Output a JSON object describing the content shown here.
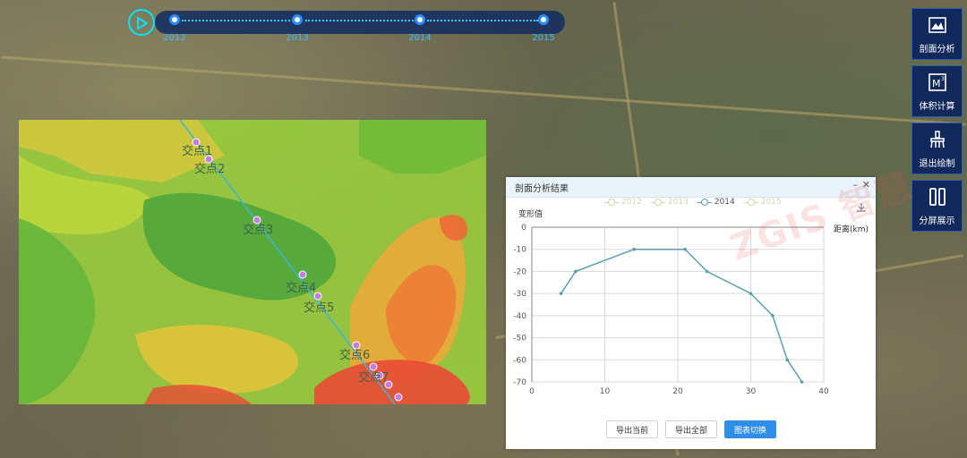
{
  "timeline": {
    "years": [
      "2012",
      "2013",
      "2014",
      "2015"
    ]
  },
  "map": {
    "intersections": [
      "交点1",
      "交点2",
      "交点3",
      "交点4",
      "交点5",
      "交点6",
      "交点7"
    ]
  },
  "tools": [
    {
      "label": "剖面分析",
      "icon": "profile-analysis-icon"
    },
    {
      "label": "体积计算",
      "icon": "volume-calculation-icon"
    },
    {
      "label": "退出绘制",
      "icon": "exit-draw-icon"
    },
    {
      "label": "分屏展示",
      "icon": "split-screen-icon"
    }
  ],
  "panel": {
    "title": "剖面分析结果",
    "minimize": "–",
    "close": "✕",
    "buttons": {
      "export_current": "导出当前",
      "export_all": "导出全部",
      "switch_chart": "图表切换"
    }
  },
  "watermark": "ZGIS 智慧",
  "colors": {
    "accent": "#2f8fe8",
    "series_active": "#5a9fad",
    "series_inactive": "#cfd8b0",
    "tool_bg": "#10285a"
  },
  "chart_data": {
    "type": "line",
    "xlabel": "距离(km)",
    "ylabel": "变形值",
    "xlim": [
      0,
      40
    ],
    "ylim": [
      -70,
      0
    ],
    "xticks": [
      0,
      10,
      20,
      30,
      40
    ],
    "yticks": [
      0,
      -10,
      -20,
      -30,
      -40,
      -50,
      -60,
      -70
    ],
    "legend": [
      "2012",
      "2013",
      "2014",
      "2015"
    ],
    "active_series": "2014",
    "legend_position": "top",
    "grid": true,
    "series": [
      {
        "name": "2014",
        "x": [
          4,
          6,
          14,
          21,
          24,
          30,
          33,
          35,
          37
        ],
        "y": [
          -30,
          -20,
          -10,
          -10,
          -20,
          -30,
          -40,
          -60,
          -70
        ]
      }
    ]
  }
}
